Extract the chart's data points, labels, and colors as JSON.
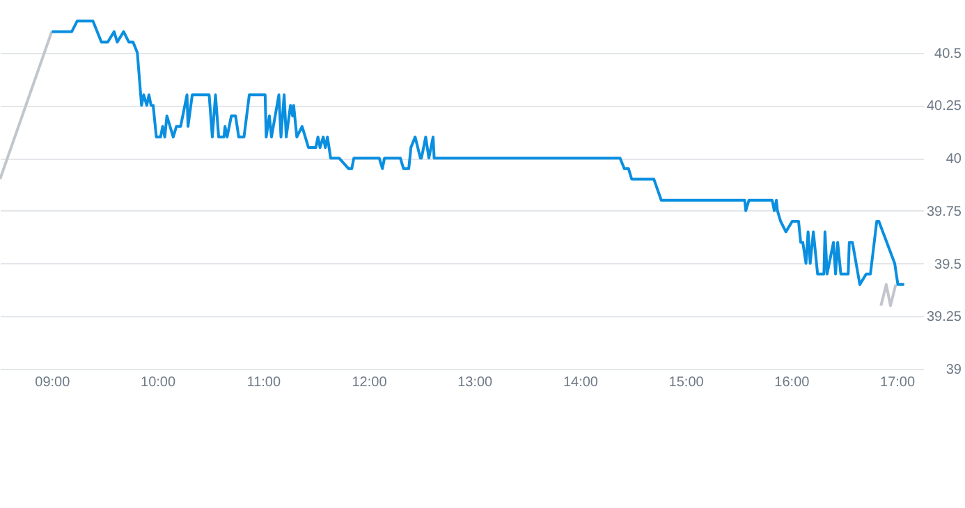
{
  "chart_data": {
    "type": "line",
    "xlim": [
      8.51,
      17.25
    ],
    "ylim": [
      39,
      40.75
    ],
    "xticks": [
      {
        "value": 9,
        "label": "09:00"
      },
      {
        "value": 10,
        "label": "10:00"
      },
      {
        "value": 11,
        "label": "11:00"
      },
      {
        "value": 12,
        "label": "12:00"
      },
      {
        "value": 13,
        "label": "13:00"
      },
      {
        "value": 14,
        "label": "14:00"
      },
      {
        "value": 15,
        "label": "15:00"
      },
      {
        "value": 16,
        "label": "16:00"
      },
      {
        "value": 17,
        "label": "17:00"
      }
    ],
    "yticks": [
      39,
      39.25,
      39.5,
      39.75,
      40,
      40.25,
      40.5
    ],
    "grid": "y",
    "series": [
      {
        "color": "#c0c6cc",
        "x": [
          8.51,
          9.0
        ],
        "values": [
          39.9,
          40.6
        ]
      },
      {
        "color": "#c0c6cc",
        "x": [
          16.85,
          16.9,
          16.94,
          16.99
        ],
        "values": [
          39.3,
          39.4,
          39.3,
          39.4
        ]
      },
      {
        "color": "#0a8fe0",
        "x": [
          9.0,
          9.19,
          9.24,
          9.39,
          9.47,
          9.53,
          9.59,
          9.62,
          9.68,
          9.73,
          9.77,
          9.81,
          9.85,
          9.87,
          9.9,
          9.92,
          9.94,
          9.96,
          9.99,
          10.03,
          10.05,
          10.07,
          10.09,
          10.12,
          10.15,
          10.18,
          10.22,
          10.28,
          10.29,
          10.33,
          10.49,
          10.52,
          10.55,
          10.58,
          10.63,
          10.64,
          10.66,
          10.7,
          10.74,
          10.77,
          10.82,
          10.87,
          11.02,
          11.03,
          11.06,
          11.08,
          11.15,
          11.17,
          11.2,
          11.22,
          11.26,
          11.28,
          11.29,
          11.32,
          11.37,
          11.4,
          11.43,
          11.5,
          11.52,
          11.54,
          11.57,
          11.59,
          11.61,
          11.64,
          11.72,
          11.81,
          11.84,
          11.86,
          12.1,
          12.13,
          12.15,
          12.3,
          12.33,
          12.38,
          12.4,
          12.44,
          12.49,
          12.5,
          12.54,
          12.57,
          12.61,
          12.62,
          14.38,
          14.42,
          14.46,
          14.49,
          14.7,
          14.77,
          15.56,
          15.57,
          15.6,
          15.82,
          15.84,
          15.86,
          15.87,
          15.9,
          15.95,
          16.01,
          16.07,
          16.09,
          16.11,
          16.14,
          16.16,
          16.18,
          16.21,
          16.25,
          16.31,
          16.32,
          16.34,
          16.4,
          16.42,
          16.44,
          16.47,
          16.54,
          16.55,
          16.58,
          16.65,
          16.71,
          16.75,
          16.81,
          16.83,
          16.98,
          17.01,
          17.07
        ],
        "values": [
          40.6,
          40.6,
          40.65,
          40.65,
          40.55,
          40.55,
          40.6,
          40.55,
          40.6,
          40.55,
          40.55,
          40.5,
          40.25,
          40.3,
          40.25,
          40.3,
          40.25,
          40.25,
          40.1,
          40.1,
          40.15,
          40.1,
          40.2,
          40.15,
          40.1,
          40.15,
          40.15,
          40.3,
          40.15,
          40.3,
          40.3,
          40.1,
          40.3,
          40.1,
          40.1,
          40.15,
          40.1,
          40.2,
          40.2,
          40.1,
          40.1,
          40.3,
          40.3,
          40.1,
          40.2,
          40.1,
          40.3,
          40.1,
          40.3,
          40.1,
          40.25,
          40.2,
          40.25,
          40.1,
          40.15,
          40.1,
          40.05,
          40.05,
          40.1,
          40.05,
          40.1,
          40.05,
          40.1,
          40.0,
          40.0,
          39.95,
          39.95,
          40.0,
          40.0,
          39.95,
          40.0,
          40.0,
          39.95,
          39.95,
          40.05,
          40.1,
          40.0,
          40.0,
          40.1,
          40.0,
          40.1,
          40.0,
          40.0,
          39.95,
          39.95,
          39.9,
          39.9,
          39.8,
          39.8,
          39.75,
          39.8,
          39.8,
          39.75,
          39.8,
          39.75,
          39.7,
          39.65,
          39.7,
          39.7,
          39.6,
          39.6,
          39.5,
          39.65,
          39.5,
          39.65,
          39.45,
          39.45,
          39.65,
          39.45,
          39.6,
          39.45,
          39.6,
          39.45,
          39.45,
          39.6,
          39.6,
          39.4,
          39.45,
          39.45,
          39.7,
          39.7,
          39.5,
          39.4,
          39.4
        ]
      }
    ]
  }
}
